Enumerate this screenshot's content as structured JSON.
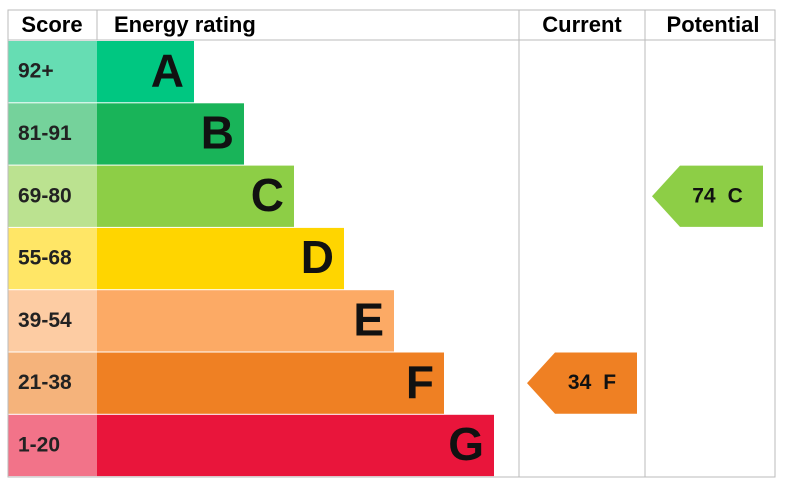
{
  "header": {
    "score": "Score",
    "rating": "Energy rating",
    "current": "Current",
    "potential": "Potential"
  },
  "bands": [
    {
      "score": "92+",
      "letter": "A",
      "color": "#00c781"
    },
    {
      "score": "81-91",
      "letter": "B",
      "color": "#19b459"
    },
    {
      "score": "69-80",
      "letter": "C",
      "color": "#8dce46"
    },
    {
      "score": "55-68",
      "letter": "D",
      "color": "#ffd500"
    },
    {
      "score": "39-54",
      "letter": "E",
      "color": "#fcaa65"
    },
    {
      "score": "21-38",
      "letter": "F",
      "color": "#ef8023"
    },
    {
      "score": "1-20",
      "letter": "G",
      "color": "#e9153b"
    }
  ],
  "current": {
    "value": 34,
    "letter": "F"
  },
  "potential": {
    "value": 74,
    "letter": "C"
  }
}
